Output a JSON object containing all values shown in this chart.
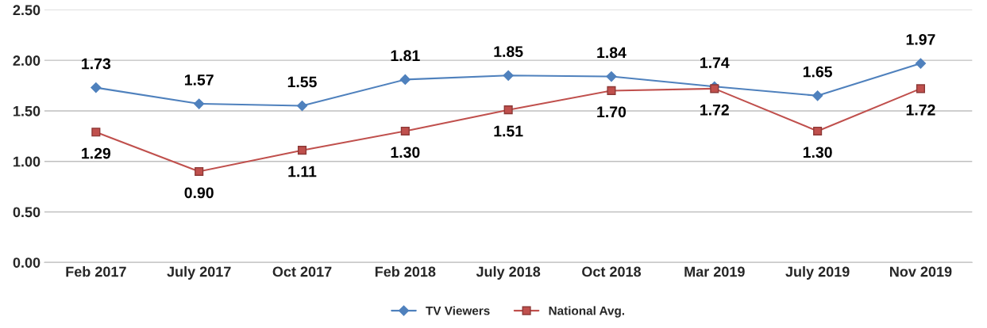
{
  "chart_data": {
    "type": "line",
    "categories": [
      "Feb 2017",
      "July 2017",
      "Oct 2017",
      "Feb 2018",
      "July 2018",
      "Oct 2018",
      "Mar 2019",
      "July 2019",
      "Nov 2019"
    ],
    "series": [
      {
        "name": "TV Viewers",
        "color": "#4f81bd",
        "marker": "diamond",
        "values": [
          1.73,
          1.57,
          1.55,
          1.81,
          1.85,
          1.84,
          1.74,
          1.65,
          1.97
        ],
        "value_labels": [
          "1.73",
          "1.57",
          "1.55",
          "1.81",
          "1.85",
          "1.84",
          "1.74",
          "1.65",
          "1.97"
        ]
      },
      {
        "name": "National Avg.",
        "color": "#c0504d",
        "marker": "square",
        "values": [
          1.29,
          0.9,
          1.11,
          1.3,
          1.51,
          1.7,
          1.72,
          1.3,
          1.72
        ],
        "value_labels": [
          "1.29",
          "0.90",
          "1.11",
          "1.30",
          "1.51",
          "1.70",
          "1.72",
          "1.30",
          "1.72"
        ]
      }
    ],
    "ylim": [
      0,
      2.5
    ],
    "yticks": [
      {
        "value": 0,
        "label": "0.00"
      },
      {
        "value": 0.5,
        "label": "0.50"
      },
      {
        "value": 1,
        "label": "1.00"
      },
      {
        "value": 1.5,
        "label": "1.50"
      },
      {
        "value": 2,
        "label": "2.00"
      },
      {
        "value": 2.5,
        "label": "2.50"
      }
    ],
    "grid": "y",
    "legend": "bottom",
    "line_style": "solid"
  }
}
